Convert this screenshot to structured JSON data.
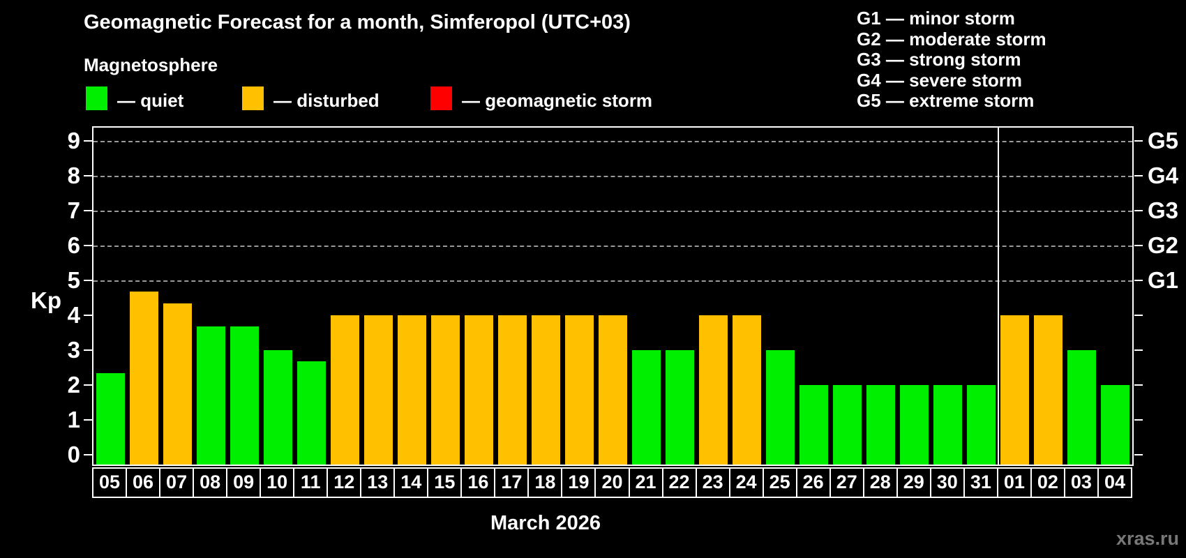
{
  "header": {
    "title": "Geomagnetic Forecast for a month, Simferopol (UTC+03)",
    "subtitle": "Magnetosphere",
    "legend": [
      {
        "name": "quiet",
        "label": "— quiet",
        "color": "#00ee00"
      },
      {
        "name": "disturbed",
        "label": "— disturbed",
        "color": "#ffc000"
      },
      {
        "name": "geomagnetic-storm",
        "label": "— geomagnetic storm",
        "color": "#ff0000"
      }
    ],
    "g_legend_lines": [
      "G1 — minor storm",
      "G2 — moderate storm",
      "G3 — strong storm",
      "G4 — severe storm",
      "G5 — extreme storm"
    ]
  },
  "chart_data": {
    "type": "bar",
    "title": "Geomagnetic Forecast for a month, Simferopol (UTC+03)",
    "ylabel": "Kp",
    "xlabel": "March 2026",
    "ylim": [
      0,
      9.4
    ],
    "yticks": [
      0,
      1,
      2,
      3,
      4,
      5,
      6,
      7,
      8,
      9
    ],
    "gridlines_kp": [
      5,
      6,
      7,
      8,
      9
    ],
    "grid": "dashed, G-levels only",
    "legend_position": "top",
    "right_axis_labels": [
      {
        "label": "G1",
        "kp": 5
      },
      {
        "label": "G2",
        "kp": 6
      },
      {
        "label": "G3",
        "kp": 7
      },
      {
        "label": "G4",
        "kp": 8
      },
      {
        "label": "G5",
        "kp": 9
      }
    ],
    "month_divider_before_index": 27,
    "categories": [
      "05",
      "06",
      "07",
      "08",
      "09",
      "10",
      "11",
      "12",
      "13",
      "14",
      "15",
      "16",
      "17",
      "18",
      "19",
      "20",
      "21",
      "22",
      "23",
      "24",
      "25",
      "26",
      "27",
      "28",
      "29",
      "30",
      "31",
      "01",
      "02",
      "03",
      "04"
    ],
    "values": [
      2.33,
      4.67,
      4.33,
      3.67,
      3.67,
      3.0,
      2.67,
      4.0,
      4.0,
      4.0,
      4.0,
      4.0,
      4.0,
      4.0,
      4.0,
      4.0,
      3.0,
      3.0,
      4.0,
      4.0,
      3.0,
      2.0,
      2.0,
      2.0,
      2.0,
      2.0,
      2.0,
      4.0,
      4.0,
      3.0,
      2.0
    ],
    "states": [
      "quiet",
      "disturbed",
      "disturbed",
      "quiet",
      "quiet",
      "quiet",
      "quiet",
      "disturbed",
      "disturbed",
      "disturbed",
      "disturbed",
      "disturbed",
      "disturbed",
      "disturbed",
      "disturbed",
      "disturbed",
      "quiet",
      "quiet",
      "disturbed",
      "disturbed",
      "quiet",
      "quiet",
      "quiet",
      "quiet",
      "quiet",
      "quiet",
      "quiet",
      "disturbed",
      "disturbed",
      "quiet",
      "quiet"
    ],
    "colors_by_state": {
      "quiet": "#00ee00",
      "disturbed": "#ffc000",
      "storm": "#ff0000"
    }
  },
  "footer": {
    "caption": "March 2026",
    "watermark": "xras.ru"
  }
}
